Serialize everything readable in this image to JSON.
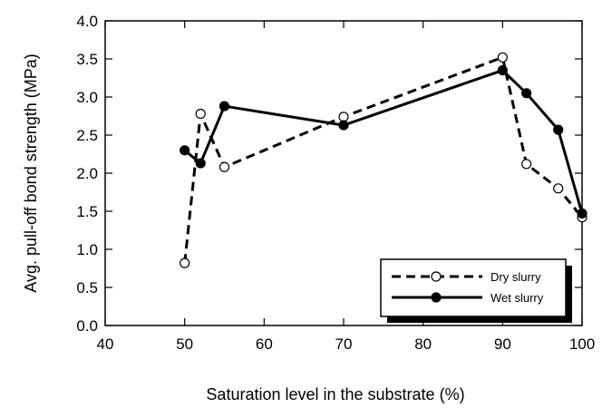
{
  "chart_data": {
    "type": "line",
    "xlabel": "Saturation level in the substrate (%)",
    "ylabel": "Avg. pull-off bond strength (MPa)",
    "xlim": [
      40,
      100
    ],
    "ylim": [
      0.0,
      4.0
    ],
    "x_ticks": [
      "40",
      "50",
      "60",
      "70",
      "80",
      "90",
      "100"
    ],
    "y_ticks": [
      "0.0",
      "0.5",
      "1.0",
      "1.5",
      "2.0",
      "2.5",
      "3.0",
      "3.5",
      "4.0"
    ],
    "grid": false,
    "legend_position": "bottom-right",
    "series": [
      {
        "name": "Dry slurry",
        "line_style": "dashed",
        "marker": "open-circle",
        "x": [
          50,
          52,
          55,
          70,
          90,
          93,
          97,
          100
        ],
        "y": [
          0.82,
          2.78,
          2.08,
          2.74,
          3.52,
          2.12,
          1.8,
          1.42
        ]
      },
      {
        "name": "Wet slurry",
        "line_style": "solid",
        "marker": "filled-circle",
        "x": [
          50,
          52,
          55,
          70,
          90,
          93,
          97,
          100
        ],
        "y": [
          2.3,
          2.13,
          2.88,
          2.63,
          3.35,
          3.05,
          2.57,
          1.47
        ]
      }
    ]
  }
}
